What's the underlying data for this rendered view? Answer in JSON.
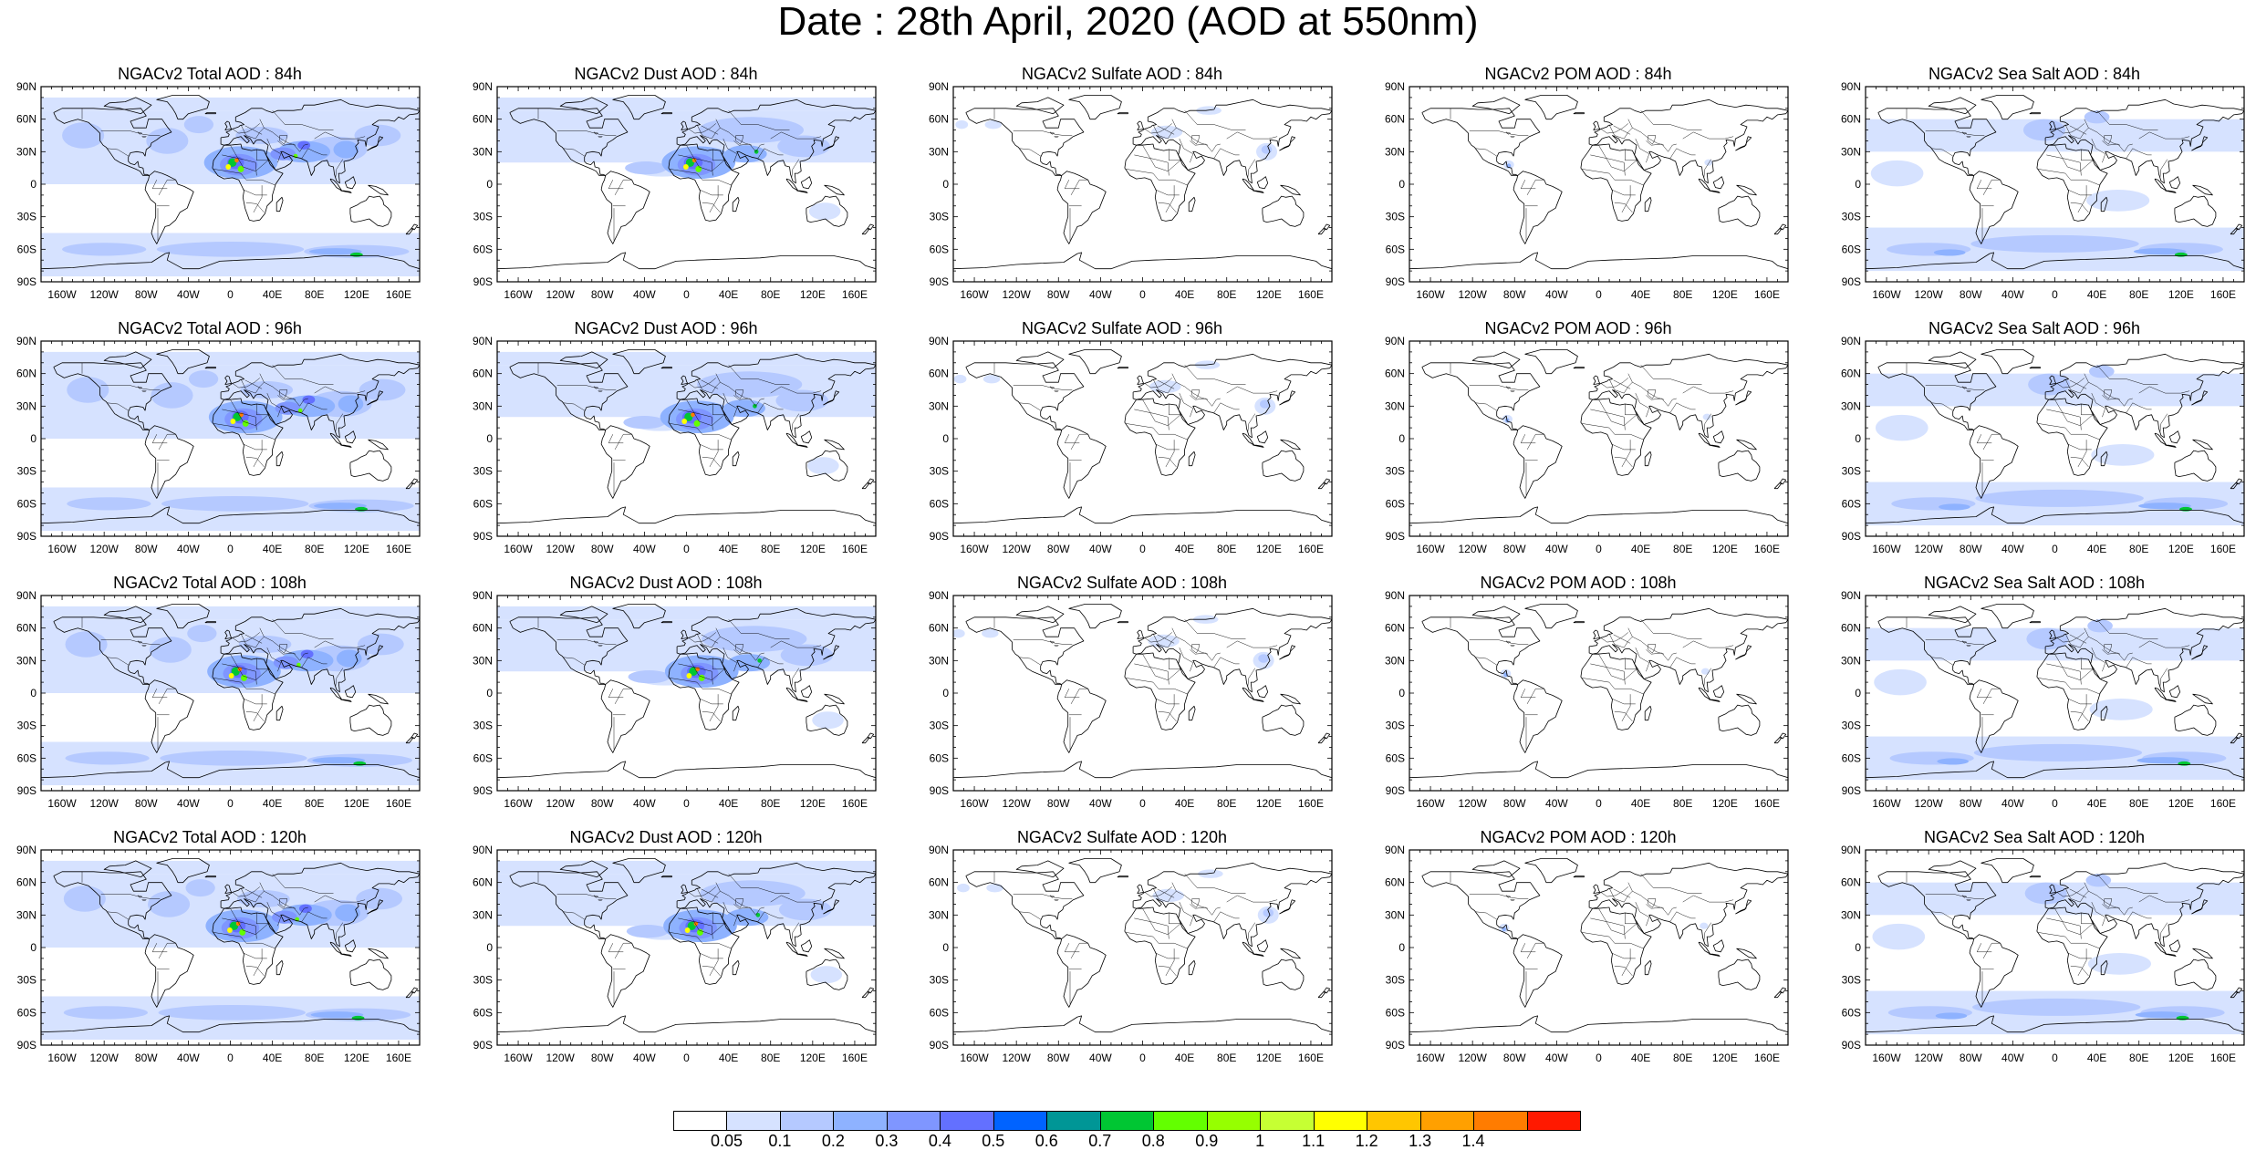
{
  "title": "Date : 28th April, 2020 (AOD at 550nm)",
  "lat_labels": [
    "90N",
    "60N",
    "30N",
    "0",
    "30S",
    "60S",
    "90S"
  ],
  "lon_labels": [
    "160W",
    "120W",
    "80W",
    "40W",
    "0",
    "40E",
    "80E",
    "120E",
    "160E"
  ],
  "species_order": [
    "total",
    "dust",
    "sulfate",
    "pom",
    "seasalt"
  ],
  "panels": [
    [
      "NGACv2 Total AOD : 84h",
      "NGACv2 Dust AOD : 84h",
      "NGACv2 Sulfate AOD : 84h",
      "NGACv2 POM AOD : 84h",
      "NGACv2 Sea Salt AOD : 84h"
    ],
    [
      "NGACv2 Total AOD : 96h",
      "NGACv2 Dust AOD : 96h",
      "NGACv2 Sulfate AOD : 96h",
      "NGACv2 POM AOD : 96h",
      "NGACv2 Sea Salt AOD : 96h"
    ],
    [
      "NGACv2 Total AOD : 108h",
      "NGACv2 Dust AOD : 108h",
      "NGACv2 Sulfate AOD : 108h",
      "NGACv2 POM AOD : 108h",
      "NGACv2 Sea Salt AOD : 108h"
    ],
    [
      "NGACv2 Total AOD : 120h",
      "NGACv2 Dust AOD : 120h",
      "NGACv2 Sulfate AOD : 120h",
      "NGACv2 POM AOD : 120h",
      "NGACv2 Sea Salt  AOD : 120h"
    ]
  ],
  "colorbar": {
    "labels": [
      "0.05",
      "0.1",
      "0.2",
      "0.3",
      "0.4",
      "0.5",
      "0.6",
      "0.7",
      "0.8",
      "0.9",
      "1",
      "1.1",
      "1.2",
      "1.3",
      "1.4"
    ],
    "colors": [
      "#ffffff",
      "#d6e2ff",
      "#b5c9ff",
      "#8eb2ff",
      "#7f96ff",
      "#6370ff",
      "#0063ff",
      "#009696",
      "#00c633",
      "#63ff00",
      "#96ff00",
      "#c6ff33",
      "#ffff00",
      "#ffc600",
      "#ffa000",
      "#ff7c00",
      "#ff1900"
    ]
  }
}
